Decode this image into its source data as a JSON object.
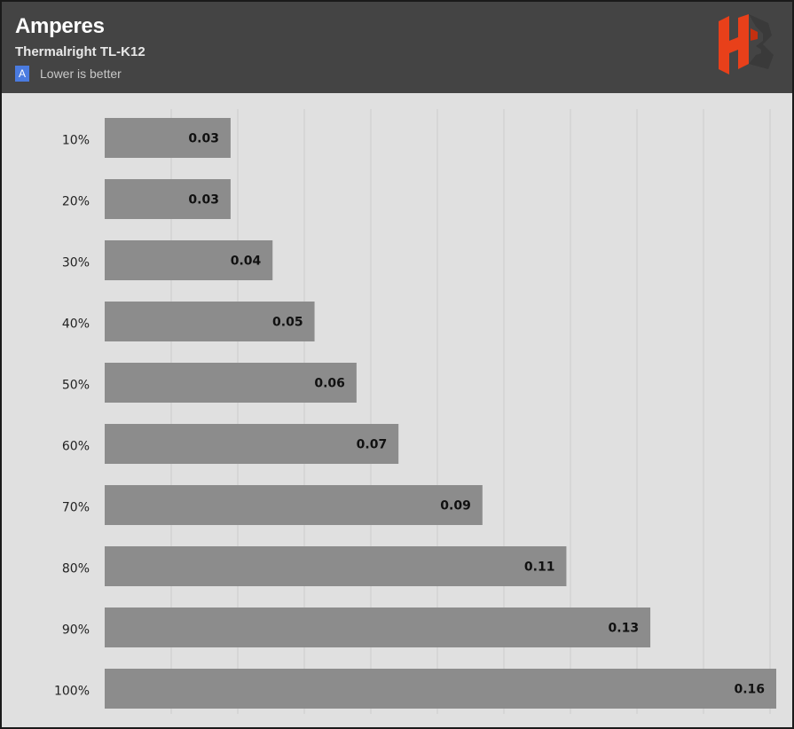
{
  "header": {
    "title": "Amperes",
    "subtitle": "Thermalright TL-K12",
    "legend_badge": "A",
    "legend_text": "Lower is better",
    "logo_icon": "hb-logo-icon"
  },
  "colors": {
    "header_bg": "#444444",
    "plot_bg": "#e0e0e0",
    "bar": "#8c8c8c",
    "legend_accent": "#4a7be0",
    "logo_red": "#e8401a",
    "logo_dark": "#3a3a3a"
  },
  "chart_data": {
    "type": "bar",
    "orientation": "horizontal",
    "categories": [
      "10%",
      "20%",
      "30%",
      "40%",
      "50%",
      "60%",
      "70%",
      "80%",
      "90%",
      "100%"
    ],
    "values": [
      0.03,
      0.03,
      0.04,
      0.05,
      0.06,
      0.07,
      0.09,
      0.11,
      0.13,
      0.16
    ],
    "title": "Amperes",
    "subtitle": "Thermalright TL-K12",
    "xlim": [
      0,
      0.16
    ],
    "grid": true,
    "legend_placement": "top-left"
  }
}
